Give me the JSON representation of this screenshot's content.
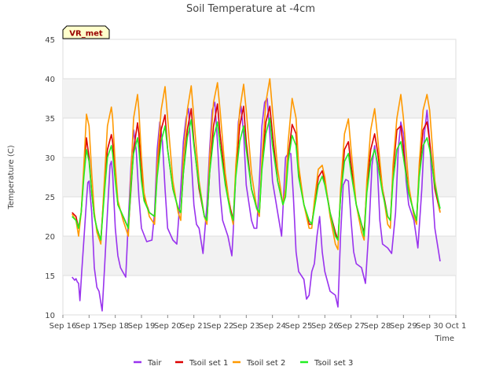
{
  "chart_data": {
    "type": "line",
    "title": "Soil Temperature at -4cm",
    "xlabel": "Time",
    "ylabel": "Temperature (C)",
    "ylim": [
      10,
      45
    ],
    "yticks": [
      10,
      15,
      20,
      25,
      30,
      35,
      40,
      45
    ],
    "xlim": [
      "Sep 16",
      "Oct 1"
    ],
    "xticks": [
      "Sep 16",
      "Sep 17",
      "Sep 18",
      "Sep 19",
      "Sep 20",
      "Sep 21",
      "Sep 22",
      "Sep 23",
      "Sep 24",
      "Sep 25",
      "Sep 26",
      "Sep 27",
      "Sep 28",
      "Sep 29",
      "Sep 30",
      "Oct 1"
    ],
    "x_unit": "days since Sep 16 00:00",
    "grid": true,
    "legend_placement": "bottom",
    "station_badge": "VR_met",
    "series": [
      {
        "name": "Tair",
        "color": "#9933ee",
        "x": [
          0.35,
          0.45,
          0.5,
          0.55,
          0.6,
          0.65,
          0.72,
          0.8,
          0.9,
          0.95,
          1.0,
          1.1,
          1.2,
          1.3,
          1.38,
          1.5,
          1.6,
          1.7,
          1.8,
          1.85,
          1.9,
          2.0,
          2.1,
          2.2,
          2.28,
          2.4,
          2.5,
          2.6,
          2.7,
          2.8,
          2.9,
          3.0,
          3.2,
          3.4,
          3.5,
          3.6,
          3.7,
          3.8,
          3.9,
          4.0,
          4.2,
          4.35,
          4.5,
          4.6,
          4.7,
          4.8,
          4.9,
          5.0,
          5.1,
          5.2,
          5.35,
          5.5,
          5.6,
          5.7,
          5.8,
          5.9,
          6.0,
          6.1,
          6.3,
          6.45,
          6.5,
          6.6,
          6.7,
          6.8,
          6.9,
          7.0,
          7.2,
          7.3,
          7.4,
          7.5,
          7.6,
          7.7,
          7.8,
          7.9,
          8.0,
          8.2,
          8.35,
          8.5,
          8.6,
          8.7,
          8.8,
          8.9,
          9.0,
          9.2,
          9.3,
          9.4,
          9.5,
          9.6,
          9.7,
          9.8,
          9.9,
          10.0,
          10.2,
          10.4,
          10.5,
          10.6,
          10.7,
          10.8,
          10.9,
          11.0,
          11.1,
          11.2,
          11.4,
          11.55,
          11.7,
          11.8,
          11.9,
          12.0,
          12.1,
          12.2,
          12.4,
          12.55,
          12.7,
          12.8,
          12.9,
          13.0,
          13.1,
          13.2,
          13.4,
          13.55,
          13.7,
          13.8,
          13.9,
          14.0,
          14.1,
          14.2,
          14.4
        ],
        "y": [
          14.8,
          14.4,
          14.6,
          14.2,
          14.0,
          11.8,
          15.5,
          19.5,
          24.5,
          26.8,
          27.0,
          23.0,
          16.0,
          13.5,
          13.0,
          10.5,
          16.5,
          23.0,
          29.0,
          29.5,
          28.0,
          21.0,
          17.5,
          16.0,
          15.5,
          14.8,
          22.0,
          29.0,
          33.5,
          31.0,
          25.0,
          21.0,
          19.3,
          19.5,
          23.0,
          31.0,
          34.5,
          32.0,
          26.0,
          21.0,
          19.5,
          19.0,
          26.0,
          32.0,
          35.0,
          36.2,
          30.0,
          24.0,
          21.5,
          21.0,
          17.8,
          24.0,
          31.0,
          36.0,
          37.0,
          32.0,
          25.5,
          22.0,
          20.0,
          17.5,
          20.5,
          28.0,
          34.5,
          36.5,
          33.0,
          26.5,
          22.0,
          21.0,
          21.0,
          27.0,
          34.0,
          37.0,
          37.5,
          33.0,
          27.0,
          23.0,
          20.0,
          30.0,
          30.5,
          30.5,
          25.0,
          18.0,
          15.5,
          14.5,
          12.0,
          12.5,
          15.5,
          16.5,
          20.0,
          22.5,
          18.0,
          15.5,
          13.0,
          12.5,
          11.0,
          20.0,
          26.5,
          27.2,
          27.0,
          22.0,
          18.0,
          16.5,
          16.0,
          14.0,
          22.0,
          29.0,
          31.5,
          29.0,
          22.0,
          19.0,
          18.5,
          17.8,
          23.0,
          31.0,
          34.5,
          33.0,
          27.0,
          24.0,
          22.0,
          18.5,
          26.0,
          33.0,
          36.0,
          32.0,
          26.0,
          21.0,
          16.8
        ]
      },
      {
        "name": "Tsoil set 1",
        "color": "#dd0000",
        "x": [
          0.35,
          0.5,
          0.6,
          0.7,
          0.8,
          0.9,
          1.0,
          1.1,
          1.2,
          1.3,
          1.45,
          1.6,
          1.7,
          1.85,
          1.9,
          2.0,
          2.1,
          2.3,
          2.5,
          2.6,
          2.7,
          2.85,
          2.9,
          3.0,
          3.1,
          3.3,
          3.5,
          3.6,
          3.75,
          3.9,
          4.0,
          4.2,
          4.4,
          4.5,
          4.6,
          4.75,
          4.9,
          5.0,
          5.2,
          5.4,
          5.5,
          5.6,
          5.75,
          5.9,
          6.0,
          6.2,
          6.4,
          6.5,
          6.6,
          6.75,
          6.9,
          7.0,
          7.2,
          7.4,
          7.5,
          7.6,
          7.75,
          7.9,
          8.0,
          8.2,
          8.4,
          8.5,
          8.6,
          8.75,
          8.9,
          9.0,
          9.2,
          9.4,
          9.5,
          9.6,
          9.75,
          9.9,
          10.0,
          10.2,
          10.4,
          10.5,
          10.6,
          10.75,
          10.9,
          11.0,
          11.2,
          11.4,
          11.5,
          11.6,
          11.75,
          11.9,
          12.0,
          12.2,
          12.4,
          12.5,
          12.6,
          12.75,
          12.9,
          13.0,
          13.2,
          13.4,
          13.5,
          13.6,
          13.75,
          13.9,
          14.0,
          14.2,
          14.4
        ],
        "y": [
          23.0,
          22.5,
          21.0,
          23.0,
          28.0,
          32.5,
          30.0,
          25.5,
          22.5,
          21.0,
          19.5,
          27.0,
          31.0,
          32.9,
          32.0,
          28.0,
          24.0,
          22.5,
          21.0,
          26.0,
          31.0,
          34.4,
          33.0,
          28.0,
          25.0,
          23.0,
          22.5,
          28.0,
          33.5,
          35.4,
          31.0,
          26.0,
          23.5,
          23.0,
          28.0,
          33.5,
          36.2,
          32.0,
          26.0,
          22.5,
          22.0,
          28.0,
          34.0,
          36.8,
          33.0,
          27.0,
          23.5,
          22.0,
          28.0,
          34.0,
          36.5,
          32.0,
          26.0,
          23.5,
          23.0,
          29.0,
          34.5,
          36.5,
          33.0,
          27.0,
          24.0,
          25.5,
          30.0,
          34.2,
          33.0,
          28.0,
          24.0,
          21.5,
          21.5,
          24.0,
          27.5,
          28.3,
          27.0,
          23.0,
          20.5,
          19.5,
          25.0,
          31.0,
          32.0,
          29.0,
          24.0,
          21.5,
          20.5,
          26.0,
          31.0,
          33.0,
          31.0,
          26.0,
          22.5,
          22.0,
          28.0,
          33.5,
          34.0,
          31.0,
          25.5,
          23.0,
          22.0,
          28.0,
          33.5,
          34.5,
          32.0,
          26.0,
          23.0
        ]
      },
      {
        "name": "Tsoil set 2",
        "color": "#ff9900",
        "x": [
          0.35,
          0.5,
          0.6,
          0.7,
          0.8,
          0.9,
          1.0,
          1.1,
          1.2,
          1.3,
          1.45,
          1.6,
          1.7,
          1.85,
          1.9,
          2.0,
          2.1,
          2.3,
          2.5,
          2.6,
          2.7,
          2.85,
          2.9,
          3.0,
          3.1,
          3.3,
          3.5,
          3.6,
          3.75,
          3.9,
          4.0,
          4.2,
          4.4,
          4.5,
          4.6,
          4.75,
          4.9,
          5.0,
          5.2,
          5.4,
          5.5,
          5.6,
          5.75,
          5.9,
          6.0,
          6.2,
          6.4,
          6.5,
          6.6,
          6.75,
          6.9,
          7.0,
          7.2,
          7.4,
          7.5,
          7.6,
          7.75,
          7.9,
          8.0,
          8.2,
          8.4,
          8.5,
          8.6,
          8.75,
          8.9,
          9.0,
          9.2,
          9.4,
          9.5,
          9.6,
          9.75,
          9.9,
          10.0,
          10.2,
          10.4,
          10.5,
          10.6,
          10.75,
          10.9,
          11.0,
          11.2,
          11.4,
          11.5,
          11.6,
          11.75,
          11.9,
          12.0,
          12.2,
          12.4,
          12.5,
          12.6,
          12.75,
          12.9,
          13.0,
          13.2,
          13.4,
          13.5,
          13.6,
          13.75,
          13.9,
          14.0,
          14.2,
          14.4
        ],
        "y": [
          22.8,
          22.0,
          20.0,
          23.0,
          29.0,
          35.5,
          34.0,
          28.0,
          23.0,
          20.5,
          19.0,
          28.0,
          34.0,
          36.4,
          35.0,
          29.0,
          24.5,
          22.0,
          20.0,
          28.0,
          35.0,
          38.0,
          36.0,
          30.0,
          25.5,
          22.5,
          21.5,
          29.0,
          36.0,
          39.0,
          35.0,
          27.0,
          23.0,
          22.0,
          30.0,
          36.0,
          39.1,
          35.0,
          27.0,
          22.5,
          21.5,
          30.0,
          37.0,
          39.5,
          36.0,
          28.0,
          23.0,
          21.5,
          29.0,
          36.0,
          39.3,
          36.0,
          28.0,
          23.5,
          22.5,
          30.0,
          37.0,
          40.0,
          36.0,
          28.5,
          24.0,
          26.0,
          32.0,
          37.5,
          35.0,
          29.0,
          24.0,
          21.0,
          21.0,
          24.5,
          28.5,
          29.0,
          27.5,
          22.5,
          19.0,
          18.3,
          26.0,
          33.0,
          34.9,
          31.0,
          24.0,
          20.5,
          19.5,
          27.0,
          33.5,
          36.2,
          33.0,
          26.0,
          21.5,
          21.0,
          29.0,
          35.0,
          38.0,
          35.0,
          26.5,
          22.5,
          21.5,
          29.0,
          36.0,
          38.0,
          36.0,
          27.0,
          23.0
        ]
      },
      {
        "name": "Tsoil set 3",
        "color": "#22ee22",
        "x": [
          0.35,
          0.5,
          0.6,
          0.7,
          0.8,
          0.9,
          1.0,
          1.1,
          1.2,
          1.3,
          1.45,
          1.6,
          1.7,
          1.85,
          1.9,
          2.0,
          2.1,
          2.3,
          2.5,
          2.6,
          2.7,
          2.85,
          2.9,
          3.0,
          3.1,
          3.3,
          3.5,
          3.6,
          3.75,
          3.9,
          4.0,
          4.2,
          4.4,
          4.5,
          4.6,
          4.75,
          4.9,
          5.0,
          5.2,
          5.4,
          5.5,
          5.6,
          5.75,
          5.9,
          6.0,
          6.2,
          6.4,
          6.5,
          6.6,
          6.75,
          6.9,
          7.0,
          7.2,
          7.4,
          7.5,
          7.6,
          7.75,
          7.9,
          8.0,
          8.2,
          8.4,
          8.5,
          8.6,
          8.75,
          8.9,
          9.0,
          9.2,
          9.4,
          9.5,
          9.6,
          9.75,
          9.9,
          10.0,
          10.2,
          10.4,
          10.5,
          10.6,
          10.75,
          10.9,
          11.0,
          11.2,
          11.4,
          11.5,
          11.6,
          11.75,
          11.9,
          12.0,
          12.2,
          12.4,
          12.5,
          12.6,
          12.75,
          12.9,
          13.0,
          13.2,
          13.4,
          13.5,
          13.6,
          13.75,
          13.9,
          14.0,
          14.2,
          14.4
        ],
        "y": [
          22.5,
          22.0,
          21.0,
          23.0,
          27.5,
          31.0,
          29.5,
          25.5,
          22.5,
          21.0,
          19.5,
          26.0,
          30.0,
          31.5,
          30.5,
          27.0,
          24.0,
          22.5,
          21.0,
          26.5,
          30.5,
          32.5,
          31.0,
          27.0,
          24.5,
          23.0,
          22.5,
          27.5,
          32.0,
          34.0,
          31.0,
          26.0,
          23.5,
          23.0,
          28.0,
          32.5,
          34.8,
          31.5,
          26.5,
          22.5,
          22.0,
          28.0,
          32.5,
          34.5,
          31.5,
          26.5,
          23.0,
          22.0,
          27.5,
          32.0,
          34.0,
          31.0,
          26.0,
          23.5,
          23.0,
          28.5,
          33.0,
          35.0,
          31.5,
          27.0,
          24.0,
          25.0,
          29.5,
          32.8,
          31.5,
          27.5,
          24.0,
          22.0,
          21.5,
          23.5,
          26.5,
          27.6,
          26.5,
          23.0,
          20.0,
          19.5,
          25.0,
          29.5,
          30.5,
          28.0,
          24.0,
          21.5,
          20.0,
          25.5,
          29.5,
          31.0,
          29.5,
          25.5,
          22.5,
          22.0,
          27.0,
          31.0,
          32.0,
          30.0,
          25.5,
          23.0,
          22.0,
          27.5,
          31.5,
          32.5,
          31.0,
          26.5,
          23.5
        ]
      }
    ]
  }
}
